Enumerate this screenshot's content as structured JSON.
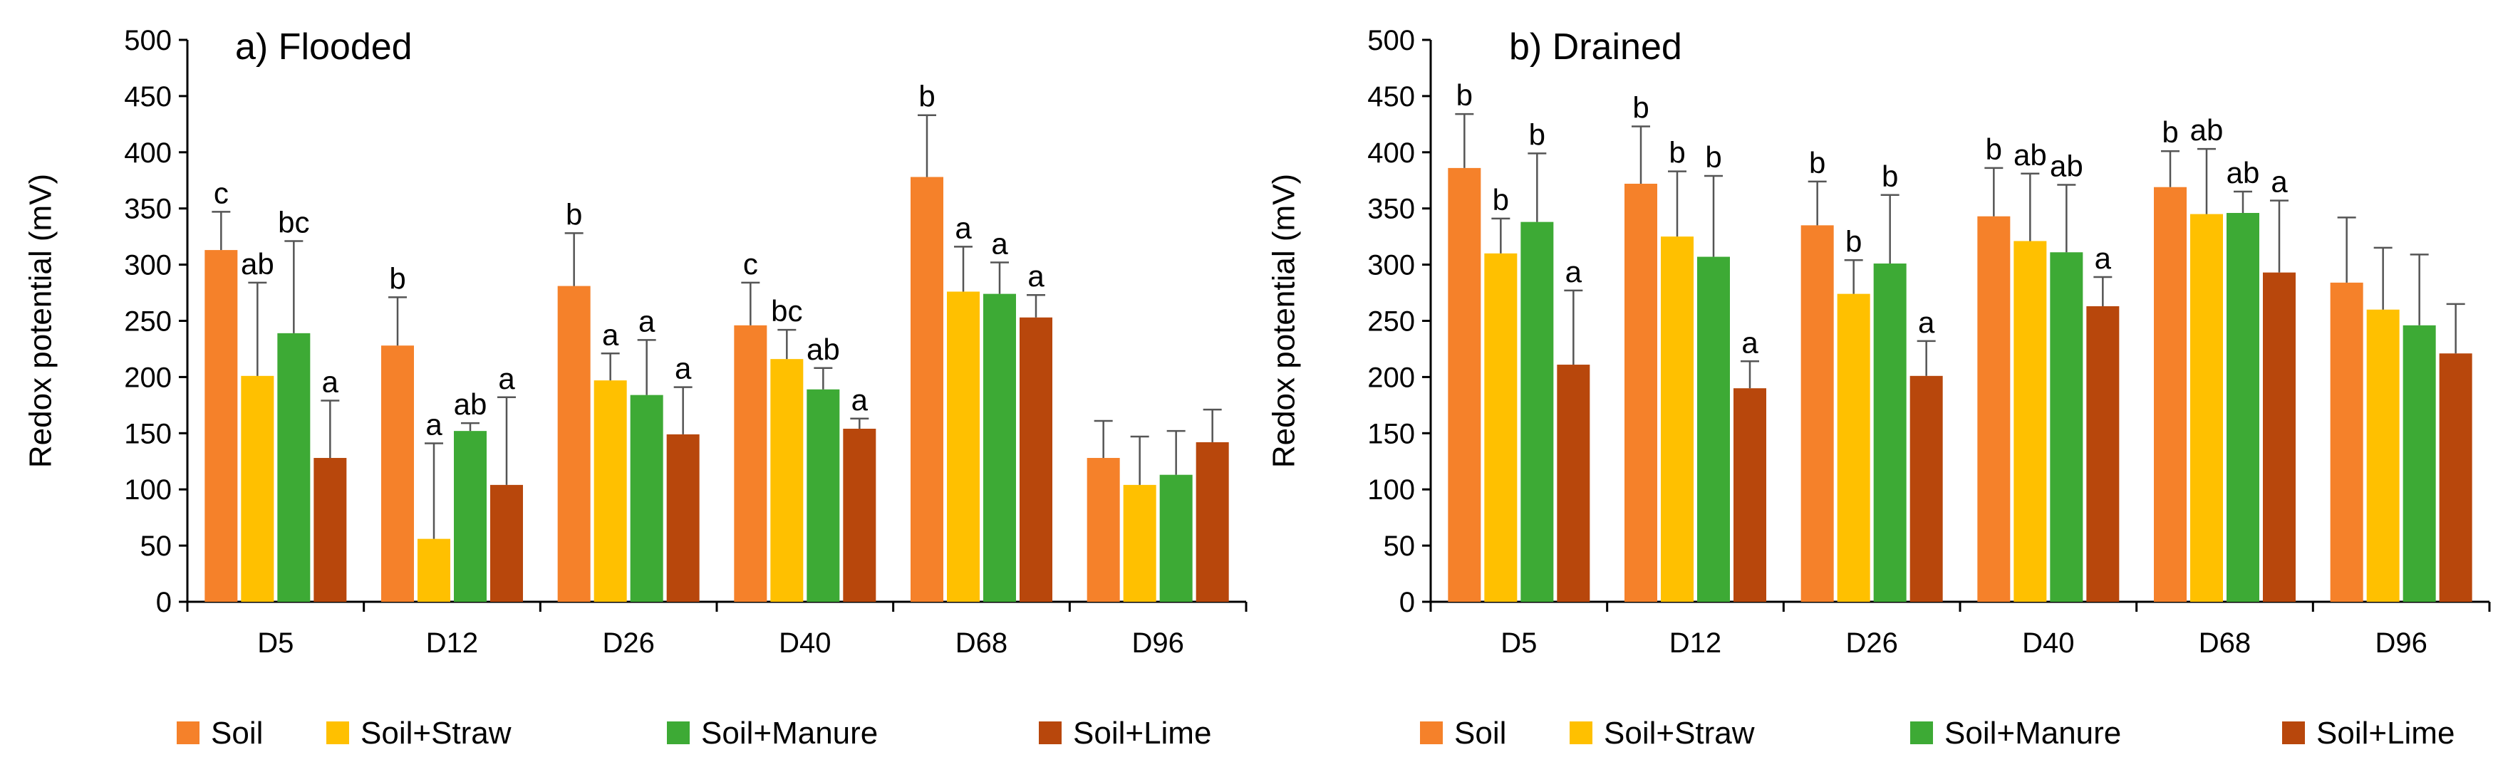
{
  "chart_data": [
    {
      "type": "bar",
      "title": "a) Flooded",
      "xlabel": "",
      "ylabel": "Redox potential (mV)",
      "ylim": [
        0,
        500
      ],
      "yticks": [
        0,
        50,
        100,
        150,
        200,
        250,
        300,
        350,
        400,
        450,
        500
      ],
      "categories": [
        "D5",
        "D12",
        "D26",
        "D40",
        "D68",
        "D96"
      ],
      "series": [
        {
          "name": "Soil",
          "color": "#F5812A",
          "values": [
            313,
            228,
            281,
            246,
            378,
            128
          ],
          "errors": [
            34,
            43,
            47,
            38,
            55,
            33
          ],
          "labels": [
            "c",
            "b",
            "b",
            "c",
            "b",
            ""
          ]
        },
        {
          "name": "Soil+Straw",
          "color": "#FFC000",
          "values": [
            201,
            56,
            197,
            216,
            276,
            104
          ],
          "errors": [
            83,
            85,
            24,
            26,
            40,
            43
          ],
          "labels": [
            "ab",
            "a",
            "a",
            "bc",
            "a",
            ""
          ]
        },
        {
          "name": "Soil+Manure",
          "color": "#3DAA35",
          "values": [
            239,
            152,
            184,
            189,
            274,
            113
          ],
          "errors": [
            82,
            7,
            49,
            19,
            28,
            39
          ],
          "labels": [
            "bc",
            "ab",
            "a",
            "ab",
            "a",
            ""
          ]
        },
        {
          "name": "Soil+Lime",
          "color": "#B8470C",
          "values": [
            128,
            104,
            149,
            154,
            253,
            142
          ],
          "errors": [
            51,
            78,
            42,
            9,
            20,
            29
          ],
          "labels": [
            "a",
            "a",
            "a",
            "a",
            "a",
            ""
          ]
        }
      ]
    },
    {
      "type": "bar",
      "title": "b) Drained",
      "xlabel": "",
      "ylabel": "Redox potential (mV)",
      "ylim": [
        0,
        500
      ],
      "yticks": [
        0,
        50,
        100,
        150,
        200,
        250,
        300,
        350,
        400,
        450,
        500
      ],
      "categories": [
        "D5",
        "D12",
        "D26",
        "D40",
        "D68",
        "D96"
      ],
      "series": [
        {
          "name": "Soil",
          "color": "#F5812A",
          "values": [
            386,
            372,
            335,
            343,
            369,
            284
          ],
          "errors": [
            48,
            51,
            39,
            43,
            32,
            58
          ],
          "labels": [
            "b",
            "b",
            "b",
            "b",
            "b",
            ""
          ]
        },
        {
          "name": "Soil+Straw",
          "color": "#FFC000",
          "values": [
            310,
            325,
            274,
            321,
            345,
            260
          ],
          "errors": [
            31,
            58,
            30,
            60,
            58,
            55
          ],
          "labels": [
            "b",
            "b",
            "b",
            "ab",
            "ab",
            ""
          ]
        },
        {
          "name": "Soil+Manure",
          "color": "#3DAA35",
          "values": [
            338,
            307,
            301,
            311,
            346,
            246
          ],
          "errors": [
            61,
            72,
            61,
            60,
            19,
            63
          ],
          "labels": [
            "b",
            "b",
            "b",
            "ab",
            "ab",
            ""
          ]
        },
        {
          "name": "Soil+Lime",
          "color": "#B8470C",
          "values": [
            211,
            190,
            201,
            263,
            293,
            221
          ],
          "errors": [
            66,
            24,
            31,
            26,
            64,
            44
          ],
          "labels": [
            "a",
            "a",
            "a",
            "a",
            "a",
            ""
          ]
        }
      ]
    }
  ]
}
